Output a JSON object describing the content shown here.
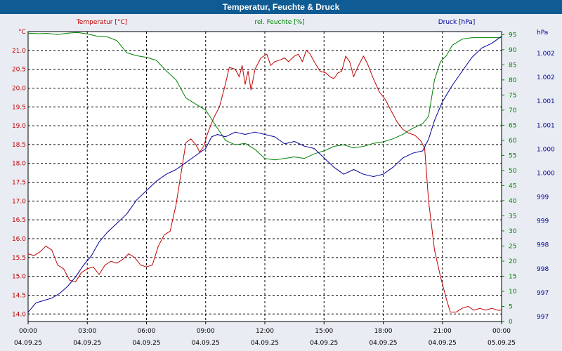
{
  "window": {
    "title": "Temperatur, Feuchte & Druck"
  },
  "colors": {
    "temperature": "#c00000",
    "humidity": "#008000",
    "pressure": "#000099",
    "grid": "#000000",
    "plot_bg": "#ffffff",
    "page_bg": "#e9edf3",
    "title_bg": "#0f5b93"
  },
  "chart_data": {
    "type": "line",
    "title": "Temperatur, Feuchte & Druck",
    "axes": {
      "temperature": {
        "label": "Temperatur [°C]",
        "unit": "°C",
        "range": [
          13.8,
          21.5
        ],
        "ticks": [
          "14.0",
          "14.5",
          "15.0",
          "15.5",
          "16.0",
          "16.5",
          "17.0",
          "17.5",
          "18.0",
          "18.5",
          "19.0",
          "19.5",
          "20.0",
          "20.5",
          "21.0"
        ]
      },
      "humidity": {
        "label": "rel. Feuchte [%]",
        "unit": "%",
        "range": [
          0,
          96
        ],
        "ticks": [
          "0",
          "5",
          "10",
          "15",
          "20",
          "25",
          "30",
          "35",
          "40",
          "45",
          "50",
          "55",
          "60",
          "65",
          "70",
          "75",
          "80",
          "85",
          "90",
          "95"
        ]
      },
      "pressure": {
        "label": "Druck [hPa]",
        "unit": "hPa",
        "range": [
          996.6,
          1002.8
        ],
        "ticks": [
          "997",
          "997",
          "998",
          "998",
          "999",
          "999",
          "1.000",
          "1.000",
          "1.001",
          "1.001",
          "1.002",
          "1.002"
        ]
      }
    },
    "x_ticks": [
      {
        "time": "00:00",
        "date": "04.09.25"
      },
      {
        "time": "03:00",
        "date": "04.09.25"
      },
      {
        "time": "06:00",
        "date": "04.09.25"
      },
      {
        "time": "09:00",
        "date": "04.09.25"
      },
      {
        "time": "12:00",
        "date": "04.09.25"
      },
      {
        "time": "15:00",
        "date": "04.09.25"
      },
      {
        "time": "18:00",
        "date": "04.09.25"
      },
      {
        "time": "21:00",
        "date": "04.09.25"
      },
      {
        "time": "00:00",
        "date": "05.09.25"
      }
    ],
    "x_range_hours": [
      0,
      24
    ],
    "series": [
      {
        "name": "Temperatur",
        "axis": "temperature",
        "points": [
          [
            0,
            15.6
          ],
          [
            0.3,
            15.55
          ],
          [
            0.6,
            15.65
          ],
          [
            0.9,
            15.8
          ],
          [
            1.2,
            15.7
          ],
          [
            1.5,
            15.3
          ],
          [
            1.8,
            15.2
          ],
          [
            2.1,
            14.9
          ],
          [
            2.4,
            14.85
          ],
          [
            2.7,
            15.1
          ],
          [
            3.0,
            15.2
          ],
          [
            3.3,
            15.25
          ],
          [
            3.6,
            15.05
          ],
          [
            3.9,
            15.3
          ],
          [
            4.2,
            15.4
          ],
          [
            4.5,
            15.35
          ],
          [
            4.8,
            15.45
          ],
          [
            5.1,
            15.6
          ],
          [
            5.4,
            15.5
          ],
          [
            5.7,
            15.3
          ],
          [
            6.0,
            15.25
          ],
          [
            6.3,
            15.3
          ],
          [
            6.6,
            15.8
          ],
          [
            6.9,
            16.1
          ],
          [
            7.2,
            16.2
          ],
          [
            7.5,
            16.9
          ],
          [
            7.8,
            17.9
          ],
          [
            8.0,
            18.55
          ],
          [
            8.25,
            18.65
          ],
          [
            8.5,
            18.5
          ],
          [
            8.7,
            18.3
          ],
          [
            8.9,
            18.45
          ],
          [
            9.1,
            18.8
          ],
          [
            9.4,
            19.2
          ],
          [
            9.7,
            19.5
          ],
          [
            10.0,
            20.1
          ],
          [
            10.2,
            20.55
          ],
          [
            10.5,
            20.5
          ],
          [
            10.7,
            20.3
          ],
          [
            10.85,
            20.6
          ],
          [
            11.0,
            20.1
          ],
          [
            11.15,
            20.45
          ],
          [
            11.3,
            19.95
          ],
          [
            11.5,
            20.5
          ],
          [
            11.8,
            20.8
          ],
          [
            12.1,
            20.9
          ],
          [
            12.3,
            20.6
          ],
          [
            12.5,
            20.7
          ],
          [
            12.8,
            20.75
          ],
          [
            13.0,
            20.8
          ],
          [
            13.2,
            20.7
          ],
          [
            13.5,
            20.85
          ],
          [
            13.7,
            20.9
          ],
          [
            13.9,
            20.7
          ],
          [
            14.1,
            21.0
          ],
          [
            14.3,
            20.9
          ],
          [
            14.5,
            20.7
          ],
          [
            14.8,
            20.45
          ],
          [
            15.1,
            20.4
          ],
          [
            15.3,
            20.3
          ],
          [
            15.5,
            20.25
          ],
          [
            15.7,
            20.4
          ],
          [
            15.9,
            20.45
          ],
          [
            16.1,
            20.85
          ],
          [
            16.3,
            20.7
          ],
          [
            16.5,
            20.3
          ],
          [
            16.7,
            20.55
          ],
          [
            17.0,
            20.85
          ],
          [
            17.2,
            20.65
          ],
          [
            17.5,
            20.25
          ],
          [
            17.8,
            19.9
          ],
          [
            18.1,
            19.7
          ],
          [
            18.4,
            19.4
          ],
          [
            18.7,
            19.1
          ],
          [
            19.0,
            18.9
          ],
          [
            19.3,
            18.8
          ],
          [
            19.6,
            18.75
          ],
          [
            19.9,
            18.6
          ],
          [
            20.1,
            18.4
          ],
          [
            20.3,
            17.0
          ],
          [
            20.6,
            15.7
          ],
          [
            20.9,
            15.0
          ],
          [
            21.2,
            14.4
          ],
          [
            21.4,
            14.05
          ],
          [
            21.7,
            14.05
          ],
          [
            22.0,
            14.15
          ],
          [
            22.3,
            14.2
          ],
          [
            22.6,
            14.1
          ],
          [
            22.9,
            14.15
          ],
          [
            23.2,
            14.1
          ],
          [
            23.5,
            14.15
          ],
          [
            23.8,
            14.1
          ],
          [
            24.0,
            14.1
          ]
        ]
      },
      {
        "name": "rel. Feuchte",
        "axis": "humidity",
        "points": [
          [
            0,
            95.5
          ],
          [
            0.5,
            95.3
          ],
          [
            1.0,
            95.4
          ],
          [
            1.5,
            95.0
          ],
          [
            2.0,
            95.5
          ],
          [
            2.5,
            95.7
          ],
          [
            3.0,
            95.2
          ],
          [
            3.5,
            94.5
          ],
          [
            4.0,
            94.3
          ],
          [
            4.5,
            93.0
          ],
          [
            5.0,
            89.0
          ],
          [
            5.5,
            88.0
          ],
          [
            6.0,
            87.5
          ],
          [
            6.5,
            86.5
          ],
          [
            7.0,
            83.0
          ],
          [
            7.5,
            80.0
          ],
          [
            8.0,
            74.0
          ],
          [
            8.5,
            72.0
          ],
          [
            9.0,
            70.0
          ],
          [
            9.5,
            65.0
          ],
          [
            10.0,
            60.0
          ],
          [
            10.5,
            58.5
          ],
          [
            11.0,
            59.0
          ],
          [
            11.5,
            57.0
          ],
          [
            12.0,
            54.0
          ],
          [
            12.5,
            53.5
          ],
          [
            13.0,
            54.0
          ],
          [
            13.5,
            54.5
          ],
          [
            14.0,
            54.0
          ],
          [
            14.5,
            55.5
          ],
          [
            15.0,
            56.5
          ],
          [
            15.5,
            58.0
          ],
          [
            16.0,
            58.5
          ],
          [
            16.5,
            57.5
          ],
          [
            17.0,
            58.0
          ],
          [
            17.5,
            59.0
          ],
          [
            18.0,
            59.5
          ],
          [
            18.5,
            60.5
          ],
          [
            19.0,
            62.0
          ],
          [
            19.5,
            64.0
          ],
          [
            20.0,
            65.5
          ],
          [
            20.3,
            68.0
          ],
          [
            20.6,
            80.0
          ],
          [
            20.9,
            86.0
          ],
          [
            21.2,
            88.0
          ],
          [
            21.5,
            91.5
          ],
          [
            22.0,
            93.5
          ],
          [
            22.5,
            94.0
          ],
          [
            23.0,
            94.0
          ],
          [
            23.5,
            94.0
          ],
          [
            24.0,
            94.0
          ]
        ]
      },
      {
        "name": "Druck",
        "axis": "pressure",
        "points": [
          [
            0,
            996.8
          ],
          [
            0.4,
            997.0
          ],
          [
            0.8,
            997.05
          ],
          [
            1.2,
            997.1
          ],
          [
            1.6,
            997.2
          ],
          [
            2.0,
            997.35
          ],
          [
            2.4,
            997.55
          ],
          [
            2.8,
            997.8
          ],
          [
            3.2,
            998.0
          ],
          [
            3.6,
            998.3
          ],
          [
            4.0,
            998.5
          ],
          [
            4.5,
            998.7
          ],
          [
            5.0,
            998.9
          ],
          [
            5.5,
            999.2
          ],
          [
            6.0,
            999.4
          ],
          [
            6.5,
            999.6
          ],
          [
            7.0,
            999.75
          ],
          [
            7.5,
            999.85
          ],
          [
            8.0,
            1000.0
          ],
          [
            8.5,
            1000.15
          ],
          [
            9.0,
            1000.3
          ],
          [
            9.3,
            1000.55
          ],
          [
            9.6,
            1000.6
          ],
          [
            10.0,
            1000.55
          ],
          [
            10.5,
            1000.65
          ],
          [
            11.0,
            1000.6
          ],
          [
            11.5,
            1000.65
          ],
          [
            12.0,
            1000.6
          ],
          [
            12.5,
            1000.55
          ],
          [
            13.0,
            1000.4
          ],
          [
            13.5,
            1000.45
          ],
          [
            14.0,
            1000.35
          ],
          [
            14.5,
            1000.3
          ],
          [
            15.0,
            1000.1
          ],
          [
            15.5,
            999.9
          ],
          [
            16.0,
            999.75
          ],
          [
            16.5,
            999.85
          ],
          [
            17.0,
            999.75
          ],
          [
            17.5,
            999.7
          ],
          [
            18.0,
            999.75
          ],
          [
            18.5,
            999.9
          ],
          [
            19.0,
            1000.1
          ],
          [
            19.5,
            1000.2
          ],
          [
            20.0,
            1000.25
          ],
          [
            20.3,
            1000.5
          ],
          [
            20.6,
            1000.9
          ],
          [
            21.0,
            1001.3
          ],
          [
            21.5,
            1001.65
          ],
          [
            22.0,
            1001.95
          ],
          [
            22.5,
            1002.25
          ],
          [
            23.0,
            1002.45
          ],
          [
            23.5,
            1002.55
          ],
          [
            24.0,
            1002.7
          ]
        ]
      }
    ]
  }
}
